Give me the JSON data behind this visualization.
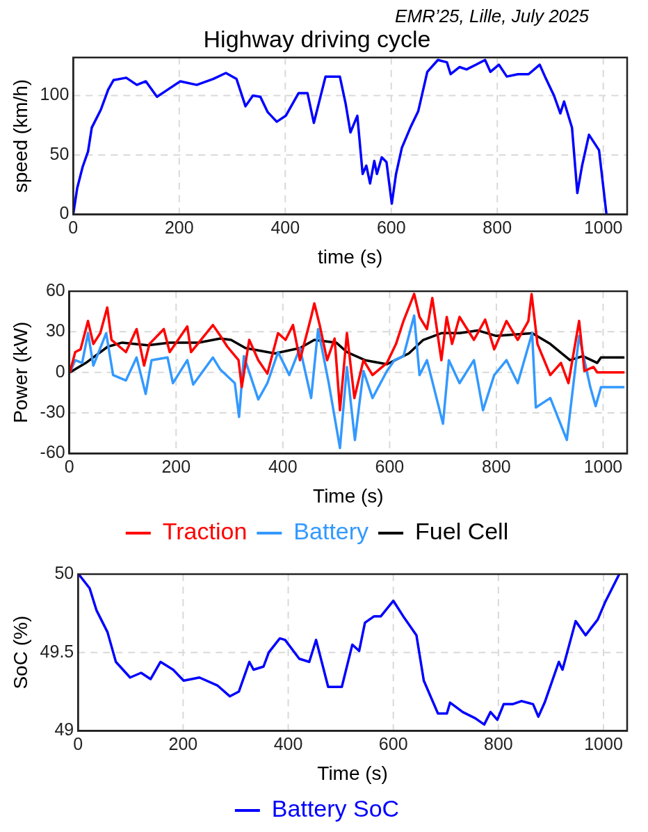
{
  "chart_data": [
    {
      "type": "line",
      "title": "Highway driving cycle",
      "xlabel": "time (s)",
      "ylabel": "speed (km/h)",
      "annotations": [
        "EMR’25, Lille, July 2025"
      ],
      "xlim": [
        0,
        1045
      ],
      "xticks": [
        0,
        200,
        400,
        600,
        800,
        1000
      ],
      "ylim": [
        0,
        132
      ],
      "yticks": [
        0,
        50,
        100
      ],
      "grid": true,
      "legend": false,
      "series": [
        {
          "color": "#0000ff",
          "x": [
            0,
            7.5,
            17.8,
            28,
            35,
            52,
            66,
            76,
            100,
            120,
            137,
            158,
            175,
            202,
            233,
            264,
            288,
            308,
            325,
            339,
            353,
            367,
            384,
            401,
            425,
            442,
            454,
            476,
            503,
            514,
            523,
            536,
            546,
            553,
            560,
            568,
            573,
            582,
            591,
            601,
            609,
            620,
            637,
            651,
            668,
            688,
            705,
            712,
            729,
            742,
            760,
            777,
            787,
            803,
            818,
            839,
            859,
            880,
            890,
            907,
            919,
            926,
            941,
            951,
            960,
            973,
            992,
            1006
          ],
          "values": [
            0,
            22,
            40,
            53,
            73,
            88,
            105,
            113,
            115,
            109,
            112,
            99,
            104,
            112,
            109,
            114,
            119,
            114,
            91,
            100,
            99,
            86,
            78,
            83,
            102,
            102,
            77,
            116,
            116,
            93,
            69,
            83,
            34,
            41,
            26,
            45,
            34,
            48,
            44,
            9,
            34,
            56,
            74,
            87,
            120,
            130,
            128,
            118,
            124,
            122,
            126,
            130,
            120,
            126,
            116,
            118,
            118,
            126,
            116,
            100,
            85,
            95,
            73,
            18,
            41,
            67,
            54,
            0
          ]
        }
      ]
    },
    {
      "type": "line",
      "xlabel": "Time (s)",
      "ylabel": "Power (kW)",
      "xlim": [
        0,
        1045
      ],
      "xticks": [
        0,
        200,
        400,
        600,
        800,
        1000
      ],
      "ylim": [
        -60,
        60
      ],
      "yticks": [
        -60,
        -30,
        0,
        30,
        60
      ],
      "grid": true,
      "legend": "bottom",
      "series": [
        {
          "name": "Traction",
          "color": "#ff0000",
          "x": [
            1,
            11,
            21,
            35,
            45,
            58,
            71,
            79,
            106,
            126,
            140,
            150,
            177,
            188,
            221,
            228,
            269,
            283,
            296,
            317,
            323,
            337,
            354,
            371,
            391,
            405,
            419,
            432,
            453,
            459,
            469,
            483,
            497,
            507,
            520,
            534,
            551,
            568,
            595,
            612,
            626,
            646,
            656,
            670,
            680,
            697,
            707,
            717,
            731,
            758,
            779,
            796,
            819,
            840,
            860,
            866,
            877,
            901,
            921,
            935,
            955,
            965,
            982,
            989,
            1040
          ],
          "values": [
            0,
            15,
            17,
            38,
            21,
            29,
            48,
            24,
            15,
            32,
            5,
            21,
            32,
            15,
            34,
            15,
            35,
            27,
            19,
            9,
            -11,
            24,
            9,
            -1,
            29,
            24,
            35,
            9,
            41,
            51,
            35,
            9,
            25,
            -28,
            29,
            -19,
            9,
            -2,
            7,
            21,
            38,
            58,
            41,
            32,
            55,
            9,
            41,
            21,
            41,
            24,
            39,
            17,
            38,
            24,
            38,
            58,
            21,
            -2,
            7,
            -8,
            38,
            1,
            4,
            0,
            0
          ]
        },
        {
          "name": "Battery",
          "color": "#3399ff",
          "x": [
            1,
            11,
            24,
            35,
            45,
            69,
            82,
            106,
            126,
            143,
            154,
            184,
            194,
            221,
            232,
            269,
            283,
            310,
            318,
            327,
            354,
            371,
            391,
            412,
            432,
            453,
            466,
            486,
            507,
            520,
            535,
            551,
            568,
            595,
            609,
            626,
            646,
            656,
            670,
            700,
            711,
            731,
            758,
            775,
            796,
            819,
            840,
            867,
            874,
            901,
            932,
            955,
            976,
            986,
            996,
            1040
          ],
          "values": [
            0,
            9,
            7,
            29,
            5,
            29,
            -2,
            -6,
            11,
            -16,
            9,
            11,
            -8,
            9,
            -9,
            11,
            2,
            -8,
            -33,
            12,
            -20,
            -8,
            15,
            -2,
            18,
            -19,
            32,
            -8,
            -56,
            4,
            -50,
            1,
            -19,
            1,
            9,
            12,
            42,
            -2,
            9,
            -38,
            9,
            -8,
            9,
            -28,
            -2,
            9,
            -8,
            29,
            -26,
            -19,
            -50,
            27,
            -11,
            -25,
            -11,
            -11
          ]
        },
        {
          "name": "Fuel Cell",
          "color": "#000000",
          "x": [
            1,
            31,
            72,
            99,
            147,
            188,
            242,
            283,
            303,
            330,
            385,
            432,
            459,
            500,
            520,
            554,
            595,
            636,
            663,
            697,
            731,
            765,
            799,
            867,
            901,
            938,
            962,
            989,
            996,
            1040
          ],
          "values": [
            0,
            7,
            19,
            22,
            20,
            22,
            22,
            25,
            24,
            18,
            14,
            18,
            24,
            22,
            15,
            9,
            6,
            14,
            24,
            29,
            29,
            31,
            27,
            29,
            21,
            9,
            12,
            7,
            11,
            11
          ]
        }
      ]
    },
    {
      "type": "line",
      "xlabel": "Time (s)",
      "ylabel": "SoC (%)",
      "xlim": [
        0,
        1045
      ],
      "xticks": [
        0,
        200,
        400,
        600,
        800,
        1000
      ],
      "ylim": [
        49,
        50
      ],
      "yticks": [
        49,
        49.5,
        50
      ],
      "grid": true,
      "legend": "bottom",
      "series": [
        {
          "name": "Battery SoC",
          "color": "#0000ff",
          "x": [
            1,
            22,
            35,
            56,
            72,
            99,
            120,
            138,
            157,
            181,
            201,
            231,
            265,
            289,
            306,
            326,
            334,
            353,
            363,
            384,
            394,
            421,
            440,
            453,
            476,
            502,
            522,
            535,
            546,
            563,
            576,
            600,
            621,
            644,
            658,
            685,
            702,
            708,
            732,
            756,
            773,
            785,
            798,
            810,
            827,
            844,
            866,
            876,
            888,
            915,
            922,
            947,
            966,
            989,
            1003,
            1030
          ],
          "values": [
            50,
            49.91,
            49.77,
            49.63,
            49.44,
            49.34,
            49.37,
            49.33,
            49.44,
            49.39,
            49.32,
            49.34,
            49.29,
            49.22,
            49.25,
            49.44,
            49.39,
            49.41,
            49.5,
            49.59,
            49.58,
            49.46,
            49.44,
            49.58,
            49.28,
            49.28,
            49.55,
            49.51,
            49.69,
            49.73,
            49.73,
            49.83,
            49.72,
            49.61,
            49.32,
            49.11,
            49.11,
            49.18,
            49.12,
            49.08,
            49.04,
            49.12,
            49.07,
            49.17,
            49.17,
            49.19,
            49.17,
            49.09,
            49.18,
            49.44,
            49.39,
            49.7,
            49.61,
            49.71,
            49.82,
            50
          ]
        }
      ]
    }
  ]
}
